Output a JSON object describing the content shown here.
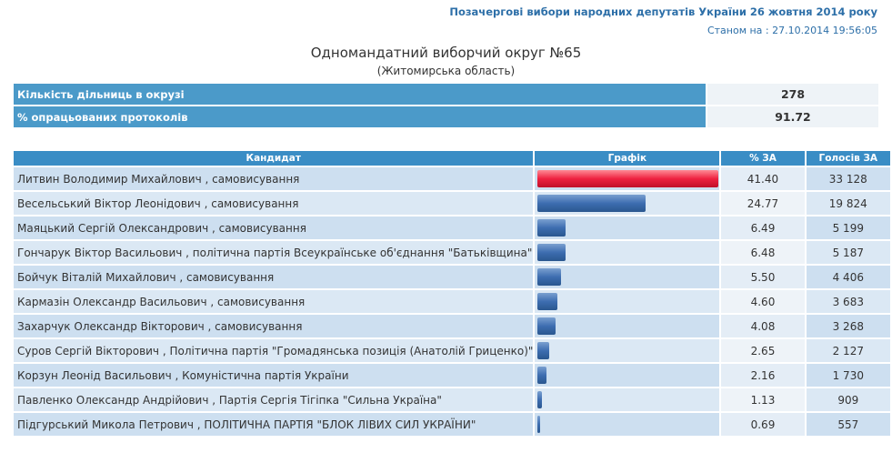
{
  "header": {
    "title": "Позачергові вибори народних депутатів України 26 жовтня 2014 року",
    "status_date": "Станом на : 27.10.2014 19:56:05"
  },
  "district": {
    "title": "Одномандатний виборчий округ №65",
    "region": "(Житомирська область)"
  },
  "summary": {
    "stations_label": "Кількість дільниць в окрузі",
    "stations_value": "278",
    "protocols_label": "% опрацьованих протоколів",
    "protocols_value": "91.72"
  },
  "results": {
    "columns": [
      "Кандидат",
      "Графік",
      "% ЗА",
      "Голосів ЗА"
    ],
    "bar_colors": {
      "leader": "#ee2240",
      "other": "#3d6db0"
    },
    "rows": [
      {
        "name": "Литвин Володимир Михайлович , самовисування",
        "pct": 41.4,
        "pct_text": "41.40",
        "votes": "33 128"
      },
      {
        "name": "Весельський Віктор Леонідович , самовисування",
        "pct": 24.77,
        "pct_text": "24.77",
        "votes": "19 824"
      },
      {
        "name": "Маяцький Сергій Олександрович , самовисування",
        "pct": 6.49,
        "pct_text": "6.49",
        "votes": "5 199"
      },
      {
        "name": "Гончарук Віктор Васильович , політична партія Всеукраїнське об'єднання \"Батьківщина\"",
        "pct": 6.48,
        "pct_text": "6.48",
        "votes": "5 187"
      },
      {
        "name": "Бойчук Віталій Михайлович , самовисування",
        "pct": 5.5,
        "pct_text": "5.50",
        "votes": "4 406"
      },
      {
        "name": "Кармазін Олександр Васильович , самовисування",
        "pct": 4.6,
        "pct_text": "4.60",
        "votes": "3 683"
      },
      {
        "name": "Захарчук Олександр Вікторович , самовисування",
        "pct": 4.08,
        "pct_text": "4.08",
        "votes": "3 268"
      },
      {
        "name": "Суров Сергій Вікторович , Політична партія \"Громадянська позиція (Анатолій Гриценко)\"",
        "pct": 2.65,
        "pct_text": "2.65",
        "votes": "2 127"
      },
      {
        "name": "Корзун Леонід Васильович , Комуністична партія України",
        "pct": 2.16,
        "pct_text": "2.16",
        "votes": "1 730"
      },
      {
        "name": "Павленко Олександр Андрійович , Партія Сергія Тігіпка \"Сильна Україна\"",
        "pct": 1.13,
        "pct_text": "1.13",
        "votes": "909"
      },
      {
        "name": "Підгурський Микола Петрович , ПОЛІТИЧНА ПАРТІЯ \"БЛОК ЛІВИХ СИЛ УКРАЇНИ\"",
        "pct": 0.69,
        "pct_text": "0.69",
        "votes": "557"
      }
    ]
  }
}
